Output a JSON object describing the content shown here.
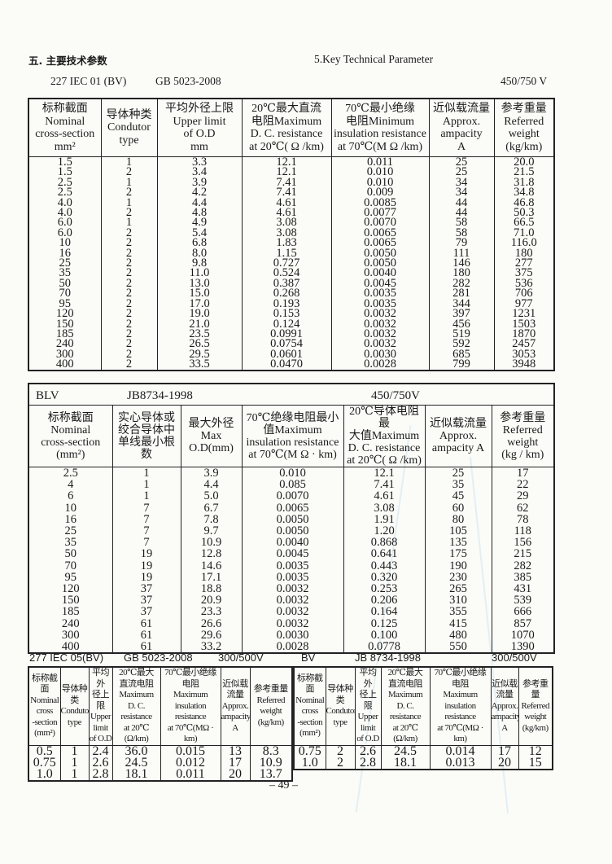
{
  "heading": {
    "cn": "五. 主要技术参数",
    "en": "5.Key  Technical Parameter"
  },
  "t1": {
    "model": "227  IEC 01 (BV)",
    "standard": "GB 5023-2008",
    "voltage": "450/750 V",
    "headers": [
      "标称截面\nNominal\ncross-section\nmm²",
      "导体种类\nCondutor\ntype",
      "平均外径上限\nUpper  limit\nof  O.D\nmm",
      "20℃最大直流\n电阻Maximum\nD. C. resistance\nat 20℃( Ω /km)",
      "70℃最小绝缘\n电阻Minimum\ninsulation resistance\nat 70℃(M Ω /km)",
      "近似载流量\nApprox.\nampacity\nA",
      "参考重量\nReferred\nweight\n(kg/km)"
    ],
    "rows": [
      [
        "1.5",
        "1",
        "3.3",
        "12.1",
        "0.011",
        "25",
        "20.0"
      ],
      [
        "1.5",
        "2",
        "3.4",
        "12.1",
        "0.010",
        "25",
        "21.5"
      ],
      [
        "2.5",
        "1",
        "3.9",
        "7.41",
        "0.010",
        "34",
        "31.8"
      ],
      [
        "2.5",
        "2",
        "4.2",
        "7.41",
        "0.009",
        "34",
        "34.8"
      ],
      [
        "4.0",
        "1",
        "4.4",
        "4.61",
        "0.0085",
        "44",
        "46.8"
      ],
      [
        "4.0",
        "2",
        "4.8",
        "4.61",
        "0.0077",
        "44",
        "50.3"
      ],
      [
        "6.0",
        "1",
        "4.9",
        "3.08",
        "0.0070",
        "58",
        "66.5"
      ],
      [
        "6.0",
        "2",
        "5.4",
        "3.08",
        "0.0065",
        "58",
        "71.0"
      ],
      [
        "10",
        "2",
        "6.8",
        "1.83",
        "0.0065",
        "79",
        "116.0"
      ],
      [
        "16",
        "2",
        "8.0",
        "1.15",
        "0.0050",
        "111",
        "180"
      ],
      [
        "25",
        "2",
        "9.8",
        "0.727",
        "0.0050",
        "146",
        "277"
      ],
      [
        "35",
        "2",
        "11.0",
        "0.524",
        "0.0040",
        "180",
        "375"
      ],
      [
        "50",
        "2",
        "13.0",
        "0.387",
        "0.0045",
        "282",
        "536"
      ],
      [
        "70",
        "2",
        "15.0",
        "0.268",
        "0.0035",
        "281",
        "706"
      ],
      [
        "95",
        "2",
        "17.0",
        "0.193",
        "0.0035",
        "344",
        "977"
      ],
      [
        "120",
        "2",
        "19.0",
        "0.153",
        "0.0032",
        "397",
        "1231"
      ],
      [
        "150",
        "2",
        "21.0",
        "0.124",
        "0.0032",
        "456",
        "1503"
      ],
      [
        "185",
        "2",
        "23.5",
        "0.0991",
        "0.0032",
        "519",
        "1870"
      ],
      [
        "240",
        "2",
        "26.5",
        "0.0754",
        "0.0032",
        "592",
        "2457"
      ],
      [
        "300",
        "2",
        "29.5",
        "0.0601",
        "0.0030",
        "685",
        "3053"
      ],
      [
        "400",
        "2",
        "33.5",
        "0.0470",
        "0.0028",
        "799",
        "3948"
      ]
    ]
  },
  "t2": {
    "model": "BLV",
    "standard": "JB8734-1998",
    "voltage": "450/750V",
    "headers": [
      "标称截面\nNominal\ncross-section\n(mm²)",
      "实心导体或\n绞合导体中\n单线最小根\n数",
      "最大外径\nMax\nO.D(mm)",
      "70℃绝缘电阻最小\n值Maximum\ninsulation resistance\nat 70℃(M Ω · km)",
      "20℃导体电阻最\n大值Maximum\nD. C. resistance\nat 20℃( Ω /km)",
      "近似载流量\nApprox.\nampacity  A",
      "参考重量\nReferred\nweight\n(kg / km)"
    ],
    "rows": [
      [
        "2.5",
        "1",
        "3.9",
        "0.010",
        "12.1",
        "25",
        "17"
      ],
      [
        "4",
        "1",
        "4.4",
        "0.085",
        "7.41",
        "35",
        "22"
      ],
      [
        "6",
        "1",
        "5.0",
        "0.0070",
        "4.61",
        "45",
        "29"
      ],
      [
        "10",
        "7",
        "6.7",
        "0.0065",
        "3.08",
        "60",
        "62"
      ],
      [
        "16",
        "7",
        "7.8",
        "0.0050",
        "1.91",
        "80",
        "78"
      ],
      [
        "25",
        "7",
        "9.7",
        "0.0050",
        "1.20",
        "105",
        "118"
      ],
      [
        "35",
        "7",
        "10.9",
        "0.0040",
        "0.868",
        "135",
        "156"
      ],
      [
        "50",
        "19",
        "12.8",
        "0.0045",
        "0.641",
        "175",
        "215"
      ],
      [
        "70",
        "19",
        "14.6",
        "0.0035",
        "0.443",
        "190",
        "282"
      ],
      [
        "95",
        "19",
        "17.1",
        "0.0035",
        "0.320",
        "230",
        "385"
      ],
      [
        "120",
        "37",
        "18.8",
        "0.0032",
        "0.253",
        "265",
        "431"
      ],
      [
        "150",
        "37",
        "20.9",
        "0.0032",
        "0.206",
        "310",
        "539"
      ],
      [
        "185",
        "37",
        "23.3",
        "0.0032",
        "0.164",
        "355",
        "666"
      ],
      [
        "240",
        "61",
        "26.6",
        "0.0032",
        "0.125",
        "415",
        "857"
      ],
      [
        "300",
        "61",
        "29.6",
        "0.0030",
        "0.100",
        "480",
        "1070"
      ],
      [
        "400",
        "61",
        "33.2",
        "0.0028",
        "0.0778",
        "550",
        "1390"
      ]
    ]
  },
  "t3": {
    "model": "277  IEC   05(BV)",
    "standard": "GB 5023-2008",
    "voltage": "300/500V",
    "headers": [
      "标称截面\nNominal\ncross\n-section\n(mm²)",
      "导体种类\nCondutor\ntype",
      "平均外\n径上限\nUpper\nlimit\nof  O.D",
      "20℃最大\n直流电阻\nMaximum\nD. C. resistance\nat 20℃(Ω/km)",
      "70℃最小绝缘\n电阻\nMaximum\ninsulation resistance\nat 70℃(MΩ · km)",
      "近似载\n流量\nApprox.\nampacity\nA",
      "参考重量\nReferred\nweight\n(kg/km)"
    ],
    "rows": [
      [
        "0.5",
        "1",
        "2.4",
        "36.0",
        "0.015",
        "13",
        "8.3"
      ],
      [
        "0.75",
        "1",
        "2.6",
        "24.5",
        "0.012",
        "17",
        "10.9"
      ],
      [
        "1.0",
        "1",
        "2.8",
        "18.1",
        "0.011",
        "20",
        "13.7"
      ]
    ]
  },
  "t4": {
    "model": "BV",
    "standard": "JB 8734-1998",
    "voltage": "300/500V",
    "headers": [
      "标称截面\nNominal\ncross\n-section\n(mm²)",
      "导体种类\nCondutor\ntype",
      "平均外\n径上限\nUpper\nlimit\nof  O.D",
      "20℃最大\n直流电阻\nMaximum\nD. C. resistance\nat 20℃(Ω/km)",
      "70℃最小绝缘\n电阻\nMaximum\ninsulation resistance\nat 70℃(MΩ · km)",
      "近似载\n流量\nApprox.\nampacity\nA",
      "参考重量\nReferred\nweight\n(kg/km)"
    ],
    "rows": [
      [
        "0.75",
        "2",
        "2.6",
        "24.5",
        "0.014",
        "17",
        "12"
      ],
      [
        "1.0",
        "2",
        "2.8",
        "18.1",
        "0.013",
        "20",
        "15"
      ]
    ]
  },
  "page_number": "– 49 –"
}
